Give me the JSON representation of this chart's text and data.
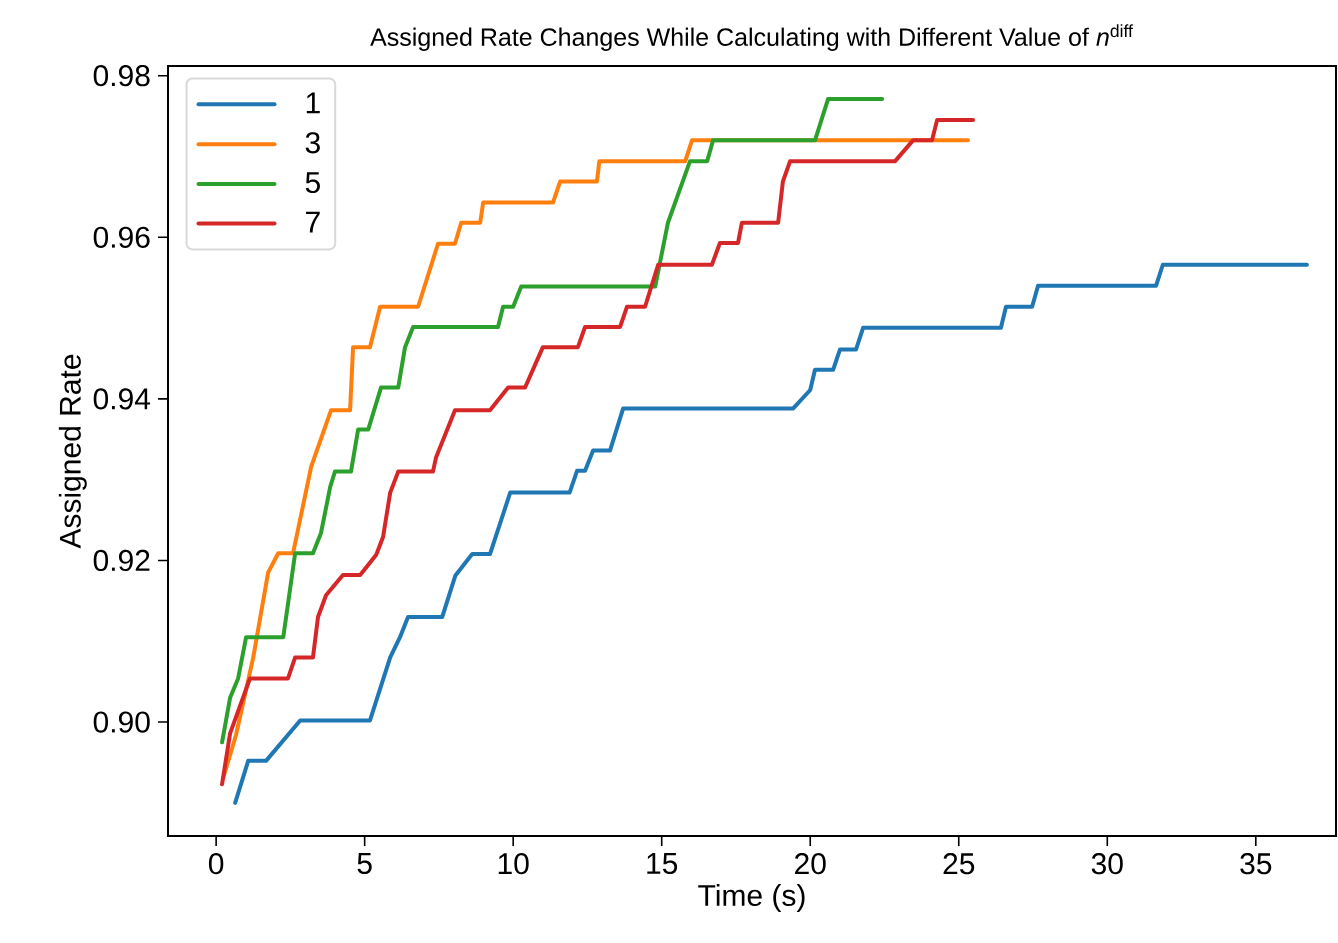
{
  "chart_data": {
    "type": "line",
    "title": "Assigned Rate Changes While Calculating with Different Value of *n*$^{diff}$",
    "xlabel": "Time (s)",
    "ylabel": "Assigned Rate",
    "xlim": [
      -1.62,
      37.7
    ],
    "ylim": [
      0.8859,
      0.9812
    ],
    "xticks": [
      0,
      5,
      10,
      15,
      20,
      25,
      30,
      35
    ],
    "yticks": [
      {
        "value": 0.9,
        "label": "0.90"
      },
      0.92,
      0.94,
      0.96,
      0.98
    ],
    "legend": "top left",
    "series": [
      {
        "name": "1",
        "color": "#1f77b4",
        "x": [
          0.64,
          1.08,
          1.68,
          2.83,
          5.18,
          5.86,
          6.19,
          6.46,
          7.61,
          8.05,
          8.62,
          9.22,
          9.9,
          11.9,
          12.15,
          12.42,
          12.69,
          13.26,
          13.7,
          19.42,
          20.0,
          20.16,
          20.77,
          21.0,
          21.54,
          21.78,
          26.42,
          26.59,
          27.47,
          27.67,
          31.64,
          31.87,
          36.72
        ],
        "values": [
          0.89,
          0.8952,
          0.8952,
          0.9002,
          0.9002,
          0.908,
          0.9105,
          0.913,
          0.913,
          0.9181,
          0.9208,
          0.9208,
          0.9284,
          0.9284,
          0.9311,
          0.9311,
          0.9336,
          0.9336,
          0.9388,
          0.9388,
          0.9411,
          0.9436,
          0.9436,
          0.9461,
          0.9461,
          0.9488,
          0.9488,
          0.9514,
          0.9514,
          0.954,
          0.954,
          0.9566,
          0.9566
        ]
      },
      {
        "name": "3",
        "color": "#ff7f0e",
        "x": [
          0.24,
          0.67,
          1.25,
          1.75,
          2.09,
          2.59,
          3.2,
          3.87,
          4.51,
          4.61,
          5.18,
          5.52,
          6.8,
          7.47,
          8.04,
          8.25,
          8.89,
          8.99,
          11.34,
          11.58,
          12.82,
          12.9,
          15.79,
          16.02,
          25.31
        ],
        "values": [
          0.8931,
          0.8984,
          0.908,
          0.9185,
          0.9209,
          0.9209,
          0.9316,
          0.9386,
          0.9386,
          0.9464,
          0.9464,
          0.9514,
          0.9514,
          0.9592,
          0.9592,
          0.9618,
          0.9618,
          0.9643,
          0.9643,
          0.9669,
          0.9669,
          0.9694,
          0.9694,
          0.972,
          0.972
        ]
      },
      {
        "name": "5",
        "color": "#2ca02c",
        "x": [
          0.2,
          0.47,
          0.74,
          1.01,
          2.26,
          2.66,
          3.26,
          3.53,
          3.84,
          4.0,
          4.54,
          4.78,
          5.12,
          5.55,
          6.13,
          6.36,
          6.63,
          9.49,
          9.66,
          10.0,
          10.27,
          14.78,
          15.21,
          15.95,
          16.53,
          16.73,
          20.16,
          20.6,
          22.42
        ],
        "values": [
          0.8975,
          0.903,
          0.9054,
          0.9105,
          0.9105,
          0.9209,
          0.9209,
          0.9234,
          0.9291,
          0.931,
          0.931,
          0.9362,
          0.9362,
          0.9414,
          0.9414,
          0.9464,
          0.9489,
          0.9489,
          0.9514,
          0.9514,
          0.9539,
          0.9539,
          0.9618,
          0.9694,
          0.9694,
          0.972,
          0.972,
          0.9771,
          0.9771
        ]
      },
      {
        "name": "7",
        "color": "#d62728",
        "x": [
          0.2,
          0.47,
          1.14,
          2.42,
          2.66,
          3.26,
          3.43,
          3.7,
          4.27,
          4.85,
          5.39,
          5.62,
          5.86,
          6.13,
          7.3,
          7.4,
          8.04,
          9.22,
          9.83,
          10.4,
          11.0,
          12.18,
          12.42,
          13.6,
          13.83,
          14.44,
          14.88,
          16.69,
          16.96,
          17.57,
          17.7,
          18.92,
          19.08,
          19.32,
          22.85,
          23.46,
          24.1,
          24.27,
          25.48
        ],
        "values": [
          0.8923,
          0.8986,
          0.9054,
          0.9054,
          0.908,
          0.908,
          0.913,
          0.9157,
          0.9182,
          0.9182,
          0.9207,
          0.9229,
          0.9284,
          0.931,
          0.931,
          0.9327,
          0.9386,
          0.9386,
          0.9414,
          0.9414,
          0.9464,
          0.9464,
          0.9489,
          0.9489,
          0.9514,
          0.9514,
          0.9566,
          0.9566,
          0.9593,
          0.9593,
          0.9618,
          0.9618,
          0.9669,
          0.9694,
          0.9694,
          0.972,
          0.972,
          0.9745,
          0.9745
        ]
      }
    ]
  }
}
